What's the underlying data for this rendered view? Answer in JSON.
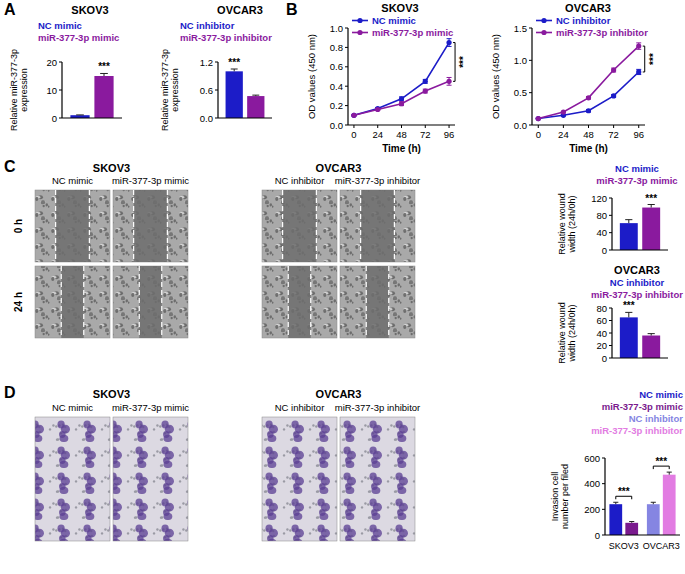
{
  "panel_labels": [
    "A",
    "B",
    "C",
    "D"
  ],
  "images": [
    {
      "groups": [
        {
          "cell": "SKOV3",
          "conditions": [
            "NC mimic",
            "miR-377-3p mimic"
          ]
        },
        {
          "cell": "OVCAR3",
          "conditions": [
            "NC inhibitor",
            "miR-377-3p inhibitor"
          ]
        }
      ],
      "rows": [
        "0 h",
        "24 h"
      ]
    },
    {
      "groups": [
        {
          "cell": "SKOV3",
          "conditions": [
            "NC mimic",
            "miR-377-3p mimic"
          ]
        },
        {
          "cell": "OVCAR3",
          "conditions": [
            "NC inhibitor",
            "miR-377-3p inhibitor"
          ]
        }
      ]
    }
  ],
  "chart_data": [
    {
      "type": "bar",
      "title": "SKOV3",
      "y_label": "Relative miR-377-3p expression",
      "categories": [
        null
      ],
      "series": [
        {
          "name": "NC mimic",
          "color": "#1c1cc8",
          "values": [
            1.0
          ],
          "errors": [
            0.1
          ]
        },
        {
          "name": "miR-377-3p mimic",
          "color": "#8a1a9e",
          "values": [
            15.0
          ],
          "errors": [
            0.9
          ]
        }
      ],
      "ylim": [
        0,
        20
      ],
      "yticks": [
        0,
        10,
        20
      ],
      "annotations": [
        "***"
      ]
    },
    {
      "type": "bar",
      "title": "OVCAR3",
      "y_label": "Relative miR-377-3p expression",
      "categories": [
        null
      ],
      "series": [
        {
          "name": "NC inhibitor",
          "color": "#1c1cc8",
          "values": [
            1.0
          ],
          "errors": [
            0.05
          ]
        },
        {
          "name": "miR-377-3p inhibitor",
          "color": "#8a1a9e",
          "values": [
            0.47
          ],
          "errors": [
            0.02
          ]
        }
      ],
      "ylim": [
        0,
        1.2
      ],
      "yticks": [
        {
          "value": 0,
          "label": "0.0"
        },
        0.6,
        1.2
      ],
      "annotations": [
        "***"
      ]
    },
    {
      "type": "line",
      "title": "SKOV3",
      "x_label": "Time (h)",
      "y_label": "OD values (450 nm)",
      "x": [
        0,
        24,
        48,
        72,
        96
      ],
      "xlim": [
        -6,
        102
      ],
      "xticks": [
        0,
        24,
        48,
        72,
        96
      ],
      "ylim": [
        0,
        1.0
      ],
      "yticks": [
        {
          "value": 0,
          "label": "0.0"
        },
        0.2,
        0.4,
        0.6,
        0.8,
        {
          "value": 1.0,
          "label": "1.0"
        }
      ],
      "marker": "circle",
      "series": [
        {
          "name": "NC mimic",
          "color": "#1c1cc8",
          "values": [
            0.1,
            0.17,
            0.27,
            0.45,
            0.85
          ],
          "errors": [
            0.005,
            0.01,
            0.02,
            0.02,
            0.04
          ]
        },
        {
          "name": "miR-377-3p mimic",
          "color": "#8a1a9e",
          "values": [
            0.1,
            0.16,
            0.22,
            0.35,
            0.45
          ],
          "errors": [
            0.005,
            0.01,
            0.02,
            0.02,
            0.04
          ]
        }
      ],
      "annotations": [
        "***"
      ]
    },
    {
      "type": "line",
      "title": "OVCAR3",
      "x_label": "Time (h)",
      "y_label": "OD values (450 nm)",
      "x": [
        0,
        24,
        48,
        72,
        96
      ],
      "xlim": [
        -6,
        102
      ],
      "xticks": [
        0,
        24,
        48,
        72,
        96
      ],
      "ylim": [
        0,
        1.5
      ],
      "yticks": [
        {
          "value": 0,
          "label": "0.0"
        },
        0.5,
        {
          "value": 1.0,
          "label": "1.0"
        },
        1.5
      ],
      "marker": "circle",
      "series": [
        {
          "name": "NC inhibitor",
          "color": "#1c1cc8",
          "values": [
            0.1,
            0.15,
            0.22,
            0.45,
            0.82
          ],
          "errors": [
            0.005,
            0.01,
            0.02,
            0.02,
            0.04
          ]
        },
        {
          "name": "miR-377-3p inhibitor",
          "color": "#8a1a9e",
          "values": [
            0.1,
            0.2,
            0.42,
            0.85,
            1.22
          ],
          "errors": [
            0.005,
            0.01,
            0.02,
            0.03,
            0.05
          ]
        }
      ],
      "annotations": [
        "***"
      ]
    },
    {
      "type": "bar",
      "y_label": "Relative wound width (24h/0h)",
      "categories": [
        null
      ],
      "series": [
        {
          "name": "NC mimic",
          "color": "#1c1cc8",
          "values": [
            62
          ],
          "errors": [
            8
          ]
        },
        {
          "name": "miR-377-3p mimic",
          "color": "#8a1a9e",
          "values": [
            98
          ],
          "errors": [
            7
          ]
        }
      ],
      "ylim": [
        0,
        120
      ],
      "yticks": [
        0,
        40,
        80,
        120
      ],
      "annotations": [
        "***"
      ]
    },
    {
      "type": "bar",
      "title": "OVCAR3",
      "y_label": "Relative wound width (24h/0h)",
      "categories": [
        null
      ],
      "series": [
        {
          "name": "NC inhibitor",
          "color": "#1c1cc8",
          "values": [
            65
          ],
          "errors": [
            8
          ]
        },
        {
          "name": "miR-377-3p inhibitor",
          "color": "#8a1a9e",
          "values": [
            36
          ],
          "errors": [
            3
          ]
        }
      ],
      "ylim": [
        0,
        80
      ],
      "yticks": [
        0,
        20,
        40,
        60,
        80
      ],
      "annotations": [
        "***"
      ]
    },
    {
      "type": "bar",
      "y_label": "Invasion cell number per filed",
      "categories": [
        "SKOV3",
        "OVCAR3"
      ],
      "series": [
        {
          "name": "NC mimic",
          "color": "#1c1cc8",
          "values": [
            240,
            null
          ],
          "errors": [
            15,
            null
          ]
        },
        {
          "name": "miR-377-3p mimic",
          "color": "#7a1a8e",
          "values": [
            95,
            null
          ],
          "errors": [
            10,
            null
          ]
        },
        {
          "name": "NC inhibitor",
          "color": "#8585e2",
          "values": [
            null,
            240
          ],
          "errors": [
            null,
            15
          ]
        },
        {
          "name": "miR-377-3p inhibitor",
          "color": "#e27ce2",
          "values": [
            null,
            470
          ],
          "errors": [
            null,
            20
          ]
        }
      ],
      "ylim": [
        0,
        600
      ],
      "yticks": [
        0,
        200,
        400,
        600
      ],
      "annotations": [
        "***",
        "***"
      ]
    }
  ]
}
